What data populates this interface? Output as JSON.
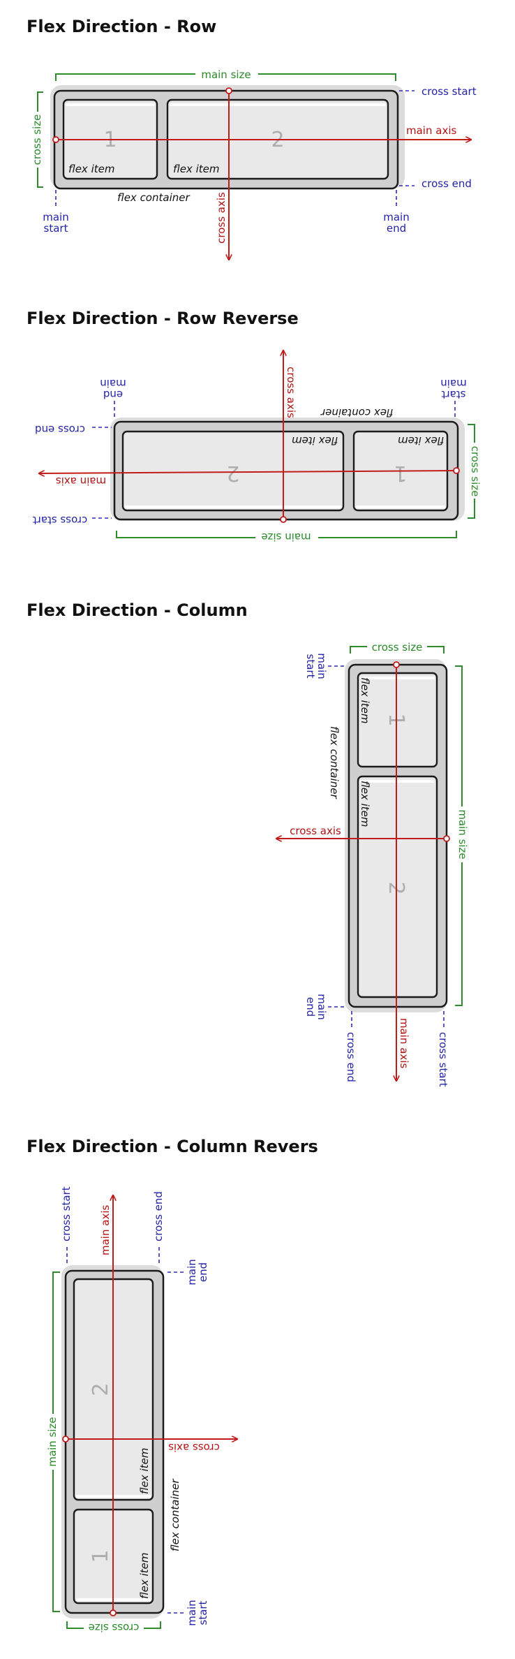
{
  "sections": [
    {
      "title": "Flex Direction - Row",
      "main_size": "main size",
      "cross_size": "cross size",
      "main_axis": "main axis",
      "cross_axis": "cross axis",
      "cross_start": "cross start",
      "cross_end": "cross end",
      "main_start": [
        "main",
        "start"
      ],
      "main_end": [
        "main",
        "end"
      ],
      "flex_container": "flex container",
      "items": [
        {
          "number": "1",
          "label": "flex item"
        },
        {
          "number": "2",
          "label": "flex item"
        }
      ]
    },
    {
      "title": "Flex Direction - Row Reverse",
      "main_size": "main size",
      "cross_size": "cross size",
      "main_axis": "main axis",
      "cross_axis": "cross axis",
      "cross_start": "cross start",
      "cross_end": "cross end",
      "main_start": [
        "main",
        "start"
      ],
      "main_end": [
        "main",
        "end"
      ],
      "flex_container": "flex container",
      "items": [
        {
          "number": "1",
          "label": "flex item"
        },
        {
          "number": "2",
          "label": "flex item"
        }
      ]
    },
    {
      "title": "Flex Direction - Column",
      "main_size": "main size",
      "cross_size": "cross size",
      "main_axis": "main axis",
      "cross_axis": "cross axis",
      "cross_start": "cross start",
      "cross_end": "cross end",
      "main_start": [
        "main",
        "start"
      ],
      "main_end": [
        "main",
        "end"
      ],
      "flex_container": "flex container",
      "items": [
        {
          "number": "1",
          "label": "flex item"
        },
        {
          "number": "2",
          "label": "flex item"
        }
      ]
    },
    {
      "title": "Flex Direction - Column Revers",
      "main_size": "main size",
      "cross_size": "cross size",
      "main_axis": "main axis",
      "cross_axis": "cross axis",
      "cross_start": "cross start",
      "cross_end": "cross end",
      "main_start": [
        "main",
        "start"
      ],
      "main_end": [
        "main",
        "end"
      ],
      "flex_container": "flex container",
      "items": [
        {
          "number": "1",
          "label": "flex item"
        },
        {
          "number": "2",
          "label": "flex item"
        }
      ]
    }
  ],
  "colors": {
    "axis": "#c21b1b",
    "size": "#2e8b2e",
    "edge": "#2d2dbd",
    "container": "#cfcfcf",
    "item": "#e9e9e9"
  }
}
